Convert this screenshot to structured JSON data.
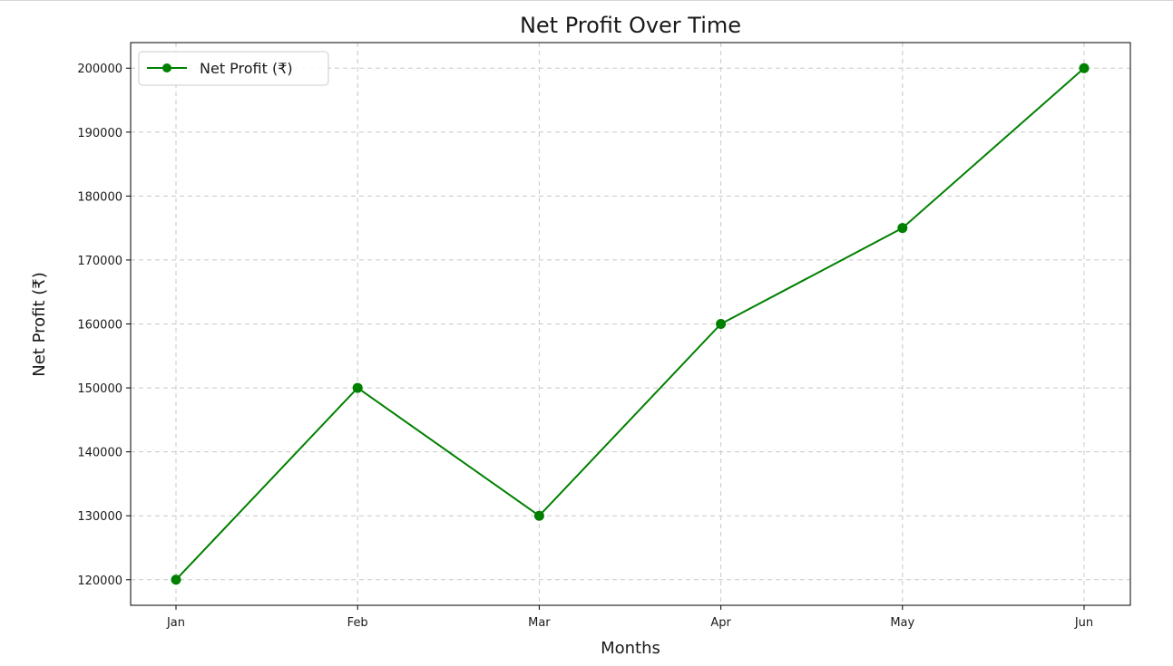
{
  "chart_data": {
    "type": "line",
    "title": "Net Profit Over Time",
    "xlabel": "Months",
    "ylabel": "Net Profit (₹)",
    "categories": [
      "Jan",
      "Feb",
      "Mar",
      "Apr",
      "May",
      "Jun"
    ],
    "series": [
      {
        "name": "Net Profit (₹)",
        "values": [
          120000,
          150000,
          130000,
          160000,
          175000,
          200000
        ],
        "color": "#008000",
        "marker": "circle"
      }
    ],
    "yticks": [
      120000,
      130000,
      140000,
      150000,
      160000,
      170000,
      180000,
      190000,
      200000
    ],
    "ylim": [
      116000,
      204000
    ],
    "grid": true,
    "grid_style": "dashed",
    "legend_position": "top-left"
  }
}
